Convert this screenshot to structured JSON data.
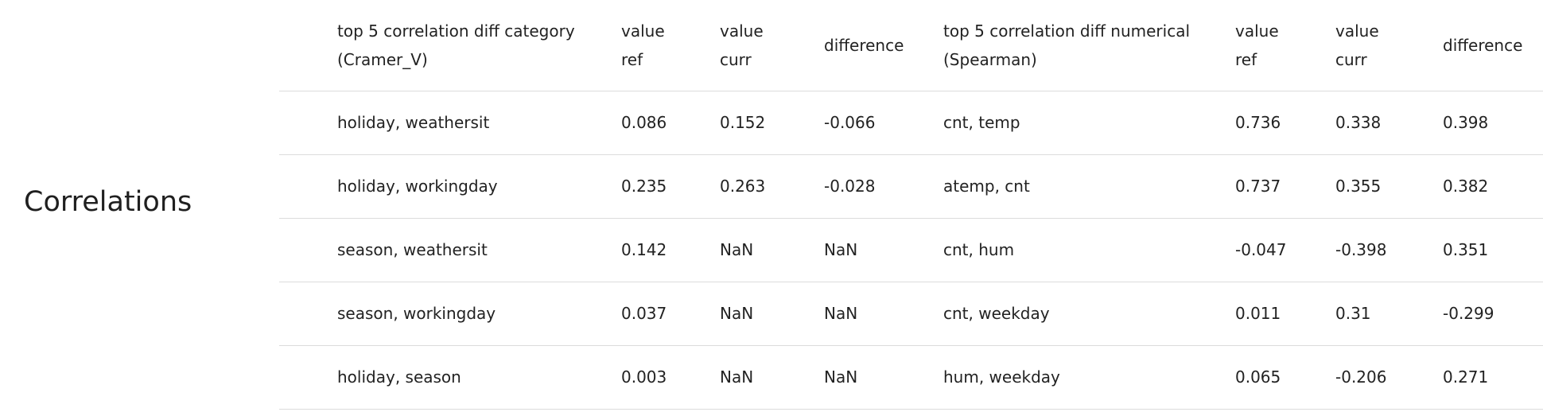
{
  "section": {
    "title": "Correlations"
  },
  "table": {
    "headers": {
      "category_pair": [
        "top 5 correlation diff category",
        "(Cramer_V)"
      ],
      "cat_value_ref": [
        "value",
        "ref"
      ],
      "cat_value_curr": [
        "value",
        "curr"
      ],
      "cat_difference": "difference",
      "numerical_pair": [
        "top 5 correlation diff numerical",
        "(Spearman)"
      ],
      "num_value_ref": [
        "value",
        "ref"
      ],
      "num_value_curr": [
        "value",
        "curr"
      ],
      "num_difference": "difference"
    },
    "rows": [
      {
        "category_pair": "holiday, weathersit",
        "cat_value_ref": "0.086",
        "cat_value_curr": "0.152",
        "cat_difference": "-0.066",
        "numerical_pair": "cnt, temp",
        "num_value_ref": "0.736",
        "num_value_curr": "0.338",
        "num_difference": "0.398"
      },
      {
        "category_pair": "holiday, workingday",
        "cat_value_ref": "0.235",
        "cat_value_curr": "0.263",
        "cat_difference": "-0.028",
        "numerical_pair": "atemp, cnt",
        "num_value_ref": "0.737",
        "num_value_curr": "0.355",
        "num_difference": "0.382"
      },
      {
        "category_pair": "season, weathersit",
        "cat_value_ref": "0.142",
        "cat_value_curr": "NaN",
        "cat_difference": "NaN",
        "numerical_pair": "cnt, hum",
        "num_value_ref": "-0.047",
        "num_value_curr": "-0.398",
        "num_difference": "0.351"
      },
      {
        "category_pair": "season, workingday",
        "cat_value_ref": "0.037",
        "cat_value_curr": "NaN",
        "cat_difference": "NaN",
        "numerical_pair": "cnt, weekday",
        "num_value_ref": "0.011",
        "num_value_curr": "0.31",
        "num_difference": "-0.299"
      },
      {
        "category_pair": "holiday, season",
        "cat_value_ref": "0.003",
        "cat_value_curr": "NaN",
        "cat_difference": "NaN",
        "numerical_pair": "hum, weekday",
        "num_value_ref": "0.065",
        "num_value_curr": "-0.206",
        "num_difference": "0.271"
      }
    ]
  }
}
